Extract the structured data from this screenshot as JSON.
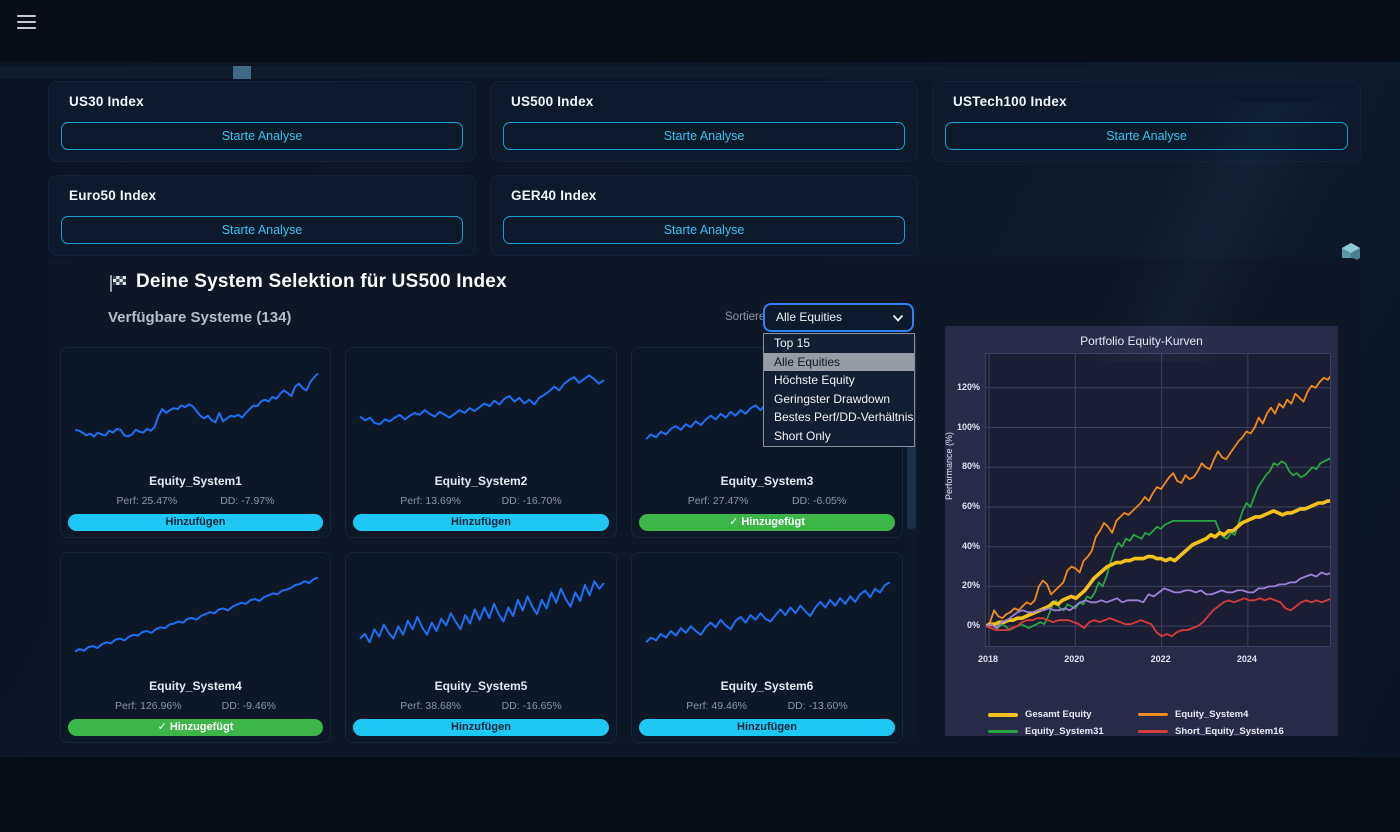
{
  "colors": {
    "accent_cyan": "#1ec8f5",
    "button_border_cyan": "#1b9fce",
    "button_text_cyan": "#35c3f0",
    "added_green": "#3cb549",
    "spark_blue": "#1f6ff2",
    "select_focus_blue": "#2f81f7",
    "panel_bg": "#272b48",
    "plot_bg": "#1b1e33"
  },
  "index_cards": [
    {
      "title": "US30 Index",
      "button": "Starte Analyse"
    },
    {
      "title": "US500 Index",
      "button": "Starte Analyse"
    },
    {
      "title": "USTech100 Index",
      "button": "Starte Analyse"
    },
    {
      "title": "Euro50 Index",
      "button": "Starte Analyse"
    },
    {
      "title": "GER40 Index",
      "button": "Starte Analyse"
    }
  ],
  "section": {
    "title": "Deine System Selektion für US500 Index",
    "subtitle": "Verfügbare Systeme (134)",
    "sort_label": "Sortieren nach:",
    "sort_value": "Alle Equities",
    "sort_options": [
      "Top 15",
      "Alle Equities",
      "Höchste Equity",
      "Geringster Drawdown",
      "Bestes Perf/DD-Verhältnis",
      "Short Only"
    ],
    "sort_selected_index": 1
  },
  "systems": [
    {
      "name": "Equity_System1",
      "perf": "Perf: 25.47%",
      "dd": "DD: -7.97%",
      "button": "Hinzufügen",
      "added": false,
      "spark": [
        30,
        29,
        27,
        24,
        26,
        23,
        27,
        25,
        24,
        29,
        27,
        31,
        30,
        24,
        23,
        25,
        30,
        28,
        27,
        31,
        29,
        33,
        45,
        52,
        48,
        51,
        53,
        52,
        56,
        54,
        57,
        55,
        50,
        45,
        42,
        45,
        40,
        38,
        48,
        39,
        42,
        45,
        44,
        46,
        43,
        48,
        52,
        56,
        55,
        60,
        62,
        60,
        65,
        63,
        68,
        72,
        69,
        66,
        76,
        79,
        74,
        72,
        81,
        86,
        90
      ]
    },
    {
      "name": "Equity_System2",
      "perf": "Perf: 13.69%",
      "dd": "DD: -16.70%",
      "button": "Hinzufügen",
      "added": false,
      "spark": [
        44,
        40,
        43,
        37,
        36,
        41,
        39,
        43,
        46,
        41,
        45,
        48,
        46,
        51,
        47,
        44,
        49,
        46,
        43,
        47,
        51,
        48,
        53,
        50,
        54,
        58,
        55,
        61,
        57,
        63,
        66,
        60,
        64,
        58,
        62,
        57,
        64,
        67,
        71,
        76,
        72,
        79,
        83,
        86,
        80,
        84,
        88,
        84,
        79,
        83
      ]
    },
    {
      "name": "Equity_System3",
      "perf": "Perf: 27.47%",
      "dd": "DD: -6.05%",
      "button": "✓ Hinzugefügt",
      "added": true,
      "spark": [
        20,
        25,
        22,
        28,
        25,
        31,
        34,
        30,
        36,
        33,
        39,
        35,
        41,
        45,
        41,
        47,
        43,
        49,
        45,
        51,
        47,
        53,
        56,
        51,
        57,
        61,
        57,
        63,
        59,
        65,
        61,
        67,
        63,
        69,
        72,
        67,
        73,
        69,
        75,
        78,
        73,
        79,
        75,
        81,
        84,
        79,
        85,
        81,
        87,
        89
      ]
    },
    {
      "name": "Equity_System4",
      "perf": "Perf: 126.96%",
      "dd": "DD: -9.46%",
      "button": "✓ Hinzugefügt",
      "added": true,
      "spark": [
        12,
        15,
        13,
        17,
        18,
        16,
        20,
        22,
        21,
        25,
        26,
        24,
        28,
        30,
        29,
        33,
        34,
        32,
        36,
        38,
        37,
        41,
        42,
        44,
        43,
        47,
        48,
        46,
        50,
        52,
        54,
        53,
        57,
        58,
        56,
        60,
        62,
        64,
        63,
        67,
        68,
        66,
        70,
        72,
        74,
        73,
        77,
        78,
        80,
        83,
        84,
        87,
        85,
        89,
        91
      ]
    },
    {
      "name": "Equity_System5",
      "perf": "Perf: 38.68%",
      "dd": "DD: -16.65%",
      "button": "Hinzufügen",
      "added": false,
      "spark": [
        26,
        31,
        22,
        36,
        28,
        41,
        32,
        26,
        39,
        30,
        45,
        36,
        49,
        38,
        30,
        43,
        34,
        47,
        40,
        53,
        44,
        36,
        51,
        42,
        57,
        46,
        59,
        48,
        63,
        52,
        44,
        59,
        50,
        67,
        56,
        71,
        60,
        52,
        67,
        58,
        75,
        64,
        79,
        68,
        60,
        75,
        66,
        83,
        72,
        87,
        79,
        85
      ]
    },
    {
      "name": "Equity_System6",
      "perf": "Perf: 49.46%",
      "dd": "DD: -13.60%",
      "button": "Hinzufügen",
      "added": false,
      "spark": [
        22,
        27,
        24,
        31,
        27,
        34,
        29,
        37,
        32,
        39,
        34,
        30,
        38,
        43,
        38,
        46,
        40,
        36,
        45,
        49,
        43,
        51,
        46,
        53,
        47,
        44,
        51,
        57,
        51,
        59,
        53,
        61,
        55,
        50,
        59,
        65,
        59,
        67,
        61,
        69,
        63,
        71,
        65,
        73,
        77,
        70,
        79,
        75,
        83,
        86
      ]
    }
  ],
  "chart_data": {
    "type": "line",
    "title": "Portfolio Equity-Kurven",
    "ylabel": "Performance (%)",
    "ylim": [
      -11,
      137
    ],
    "x_years_range": [
      2017.93,
      2025.95
    ],
    "yticks": [
      0,
      20,
      40,
      60,
      80,
      100,
      120
    ],
    "ytick_labels": [
      "0%",
      "20%",
      "40%",
      "60%",
      "80%",
      "100%",
      "120%"
    ],
    "xticks": [
      2018,
      2020,
      2022,
      2024
    ],
    "grid": true,
    "legend_position": "bottom",
    "legend": [
      {
        "label": "Gesamt Equity",
        "color": "#f2c21a",
        "thick": true
      },
      {
        "label": "Equity_System4",
        "color": "#f08c1e",
        "thick": false
      },
      {
        "label": "Equity_System31",
        "color": "#2aa343",
        "thick": false
      },
      {
        "label": "Short_Equity_System16",
        "color": "#d93a3a",
        "thick": false
      }
    ],
    "series": [
      {
        "name": "Equity_System4",
        "color": "#f08c1e",
        "width": 1.8,
        "values": [
          0,
          2,
          8,
          5,
          4,
          6,
          7,
          9,
          8,
          10,
          12,
          11,
          13,
          20,
          23,
          21,
          16,
          18,
          20,
          22,
          28,
          30,
          29,
          27,
          33,
          35,
          38,
          45,
          48,
          52,
          50,
          47,
          53,
          55,
          57,
          56,
          58,
          60,
          62,
          65,
          63,
          67,
          70,
          69,
          72,
          75,
          77,
          73,
          72,
          76,
          74,
          75,
          78,
          82,
          80,
          79,
          84,
          88,
          85,
          84,
          87,
          90,
          93,
          95,
          98,
          97,
          100,
          105,
          102,
          107,
          110,
          107,
          112,
          110,
          114,
          112,
          117,
          115,
          113,
          118,
          121,
          120,
          123,
          125,
          124,
          127
        ]
      },
      {
        "name": "Equity_System31",
        "color": "#2aa343",
        "width": 1.8,
        "values": [
          0,
          1,
          0,
          -1,
          1,
          0,
          -2,
          -1,
          0,
          1,
          0,
          -1,
          0,
          1,
          2,
          1,
          5,
          10,
          13,
          9,
          8,
          11,
          10,
          9,
          12,
          11,
          15,
          14,
          17,
          22,
          20,
          25,
          32,
          38,
          42,
          40,
          44,
          43,
          46,
          45,
          44,
          47,
          46,
          48,
          50,
          49,
          51,
          52,
          53,
          53,
          53,
          53,
          53,
          53,
          53,
          53,
          53,
          53,
          53,
          53,
          48,
          45,
          44,
          47,
          46,
          52,
          58,
          62,
          60,
          65,
          70,
          73,
          76,
          78,
          82,
          81,
          83,
          82,
          78,
          76,
          77,
          75,
          76,
          78,
          80,
          79,
          82,
          83,
          84,
          85
        ]
      },
      {
        "name": "Gesamt Equity",
        "color": "#f2c21a",
        "width": 3.6,
        "values": [
          0,
          1,
          1,
          2,
          2,
          3,
          3,
          4,
          4,
          5,
          6,
          7,
          8,
          9,
          10,
          12,
          11,
          13,
          14,
          15,
          14,
          16,
          18,
          21,
          24,
          26,
          28,
          30,
          31,
          32,
          32,
          33,
          33,
          34,
          34,
          34,
          35,
          35,
          34,
          34,
          33,
          34,
          33,
          35,
          37,
          39,
          41,
          42,
          43,
          44,
          46,
          45,
          47,
          46,
          48,
          48,
          50,
          52,
          53,
          54,
          55,
          55,
          56,
          57,
          58,
          57,
          56,
          57,
          57,
          58,
          59,
          59,
          60,
          61,
          62,
          62,
          63,
          63
        ]
      },
      {
        "name": "",
        "color": "#9d7fd6",
        "width": 1.8,
        "values": [
          0,
          1,
          -1,
          2,
          3,
          5,
          7,
          8,
          7,
          7,
          8,
          8,
          9,
          8,
          8,
          9,
          8,
          10,
          12,
          13,
          12,
          12,
          13,
          12,
          13,
          14,
          12,
          13,
          13,
          13,
          12,
          16,
          15,
          17,
          19,
          18,
          17,
          17,
          18,
          18,
          17,
          18,
          16,
          16,
          17,
          18,
          17,
          17,
          18,
          18,
          17,
          17,
          19,
          19,
          20,
          20,
          21,
          21,
          22,
          22,
          24,
          25,
          26,
          25,
          27,
          26,
          27
        ]
      },
      {
        "name": "Short_Equity_System16",
        "color": "#d93a3a",
        "width": 1.8,
        "values": [
          0,
          -1,
          -2,
          -2,
          -2,
          -1,
          0,
          2,
          3,
          3,
          4,
          4,
          3,
          2,
          3,
          3,
          3,
          2,
          1,
          -1,
          2,
          3,
          2,
          3,
          4,
          3,
          2,
          1,
          1,
          2,
          3,
          2,
          1,
          -3,
          -5,
          -4,
          -5,
          -3,
          -2,
          -2,
          -1,
          0,
          2,
          5,
          8,
          10,
          12,
          13,
          12,
          13,
          14,
          13,
          13,
          14,
          13,
          14,
          13,
          12,
          9,
          8,
          10,
          12,
          13,
          12,
          13,
          12,
          13,
          14
        ]
      }
    ]
  }
}
